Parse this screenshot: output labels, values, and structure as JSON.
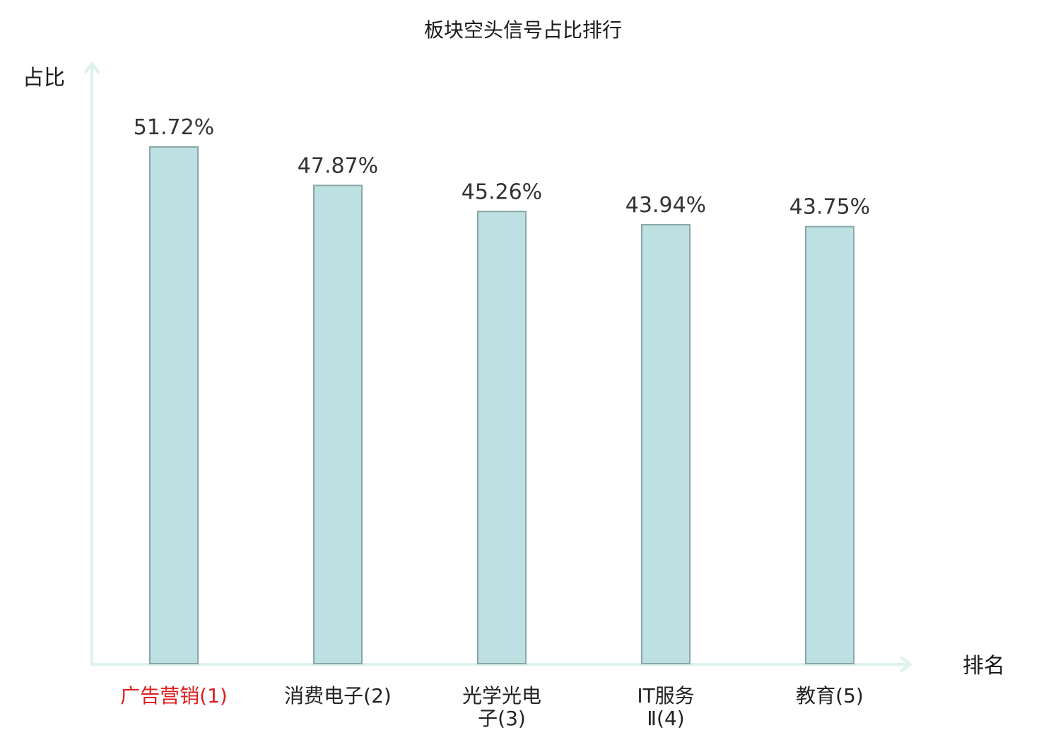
{
  "chart_data": {
    "type": "bar",
    "title": "板块空头信号占比排行",
    "xlabel": "排名",
    "ylabel": "占比",
    "categories": [
      "广告营销(1)",
      "消费电子(2)",
      "光学光电子(3)",
      "IT服务Ⅱ(4)",
      "教育(5)"
    ],
    "category_lines": [
      [
        "广告营销(1)"
      ],
      [
        "消费电子(2)"
      ],
      [
        "光学光电",
        "子(3)"
      ],
      [
        "IT服务",
        "Ⅱ(4)"
      ],
      [
        "教育(5)"
      ]
    ],
    "values": [
      51.72,
      47.87,
      45.26,
      43.94,
      43.75
    ],
    "value_labels": [
      "51.72%",
      "47.87%",
      "45.26%",
      "43.94%",
      "43.75%"
    ],
    "ylim": [
      0,
      60
    ],
    "grid": false,
    "colors": {
      "bar_fill": "#bde1e2",
      "bar_stroke": "#8aa6a6",
      "axis": "#ddf2ee",
      "highlight_label": "#dd1f1f"
    },
    "highlight_index": 0
  }
}
